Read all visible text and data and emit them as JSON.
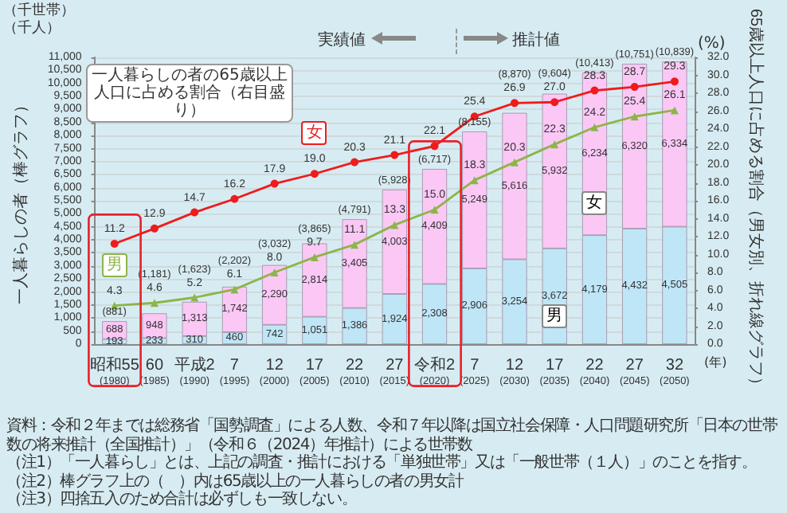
{
  "chart_data": {
    "type": "bar",
    "stacked": true,
    "ylabel": "一人暮らしの者（棒グラフ）",
    "y2label": "65歳以上人口に占める割合（男女別、折れ線グラフ）",
    "categories": [
      "昭和55\n(1980)",
      "60\n(1985)",
      "平成2\n(1990)",
      "7\n(1995)",
      "12\n(2000)",
      "17\n(2005)",
      "22\n(2010)",
      "27\n(2015)",
      "令和2\n(2020)",
      "7\n(2025)",
      "12\n(2030)",
      "17\n(2035)",
      "22\n(2040)",
      "27\n(2045)",
      "32\n(2050)"
    ],
    "series": [
      {
        "name": "男",
        "color": "#bfe6f7",
        "values": [
          193,
          233,
          310,
          460,
          742,
          1051,
          1386,
          1924,
          2308,
          2906,
          3254,
          3672,
          4179,
          4432,
          4505
        ],
        "value_labels": [
          "193",
          "233",
          "310",
          "460",
          "742",
          "1,051",
          "1,386",
          "1,924",
          "2,308",
          "2,906",
          "3,254",
          "3,672",
          "4,179",
          "4,432",
          "4,505"
        ]
      },
      {
        "name": "女",
        "color": "#fbc8f6",
        "values": [
          688,
          948,
          1313,
          1742,
          2290,
          2814,
          3405,
          4003,
          4409,
          5249,
          5616,
          5932,
          6234,
          6320,
          6334
        ],
        "value_labels": [
          "688",
          "948",
          "1,313",
          "1,742",
          "2,290",
          "2,814",
          "3,405",
          "4,003",
          "4,409",
          "5,249",
          "5,616",
          "5,932",
          "6,234",
          "6,320",
          "6,334"
        ]
      },
      {
        "name": "女",
        "type": "line",
        "axis": "y2",
        "marker": "circle",
        "color": "#ee1c1c",
        "values": [
          11.2,
          12.9,
          14.7,
          16.2,
          17.9,
          19.0,
          20.3,
          21.1,
          22.1,
          25.4,
          26.9,
          27.0,
          28.3,
          28.7,
          29.3
        ],
        "value_labels": [
          "11.2",
          "12.9",
          "14.7",
          "16.2",
          "17.9",
          "19.0",
          "20.3",
          "21.1",
          "22.1",
          "25.4",
          "26.9",
          "27.0",
          "28.3",
          "28.7",
          "29.3"
        ]
      },
      {
        "name": "男",
        "type": "line",
        "axis": "y2",
        "marker": "triangle",
        "color": "#8db54a",
        "values": [
          4.3,
          4.6,
          5.2,
          6.1,
          8.0,
          9.7,
          11.1,
          13.3,
          15.0,
          18.3,
          20.3,
          22.3,
          24.2,
          25.4,
          26.1
        ],
        "value_labels": [
          "4.3",
          "4.6",
          "5.2",
          "6.1",
          "8.0",
          "9.7",
          "11.1",
          "13.3",
          "15.0",
          "18.3",
          "20.3",
          "22.3",
          "24.2",
          "25.4",
          "26.1"
        ]
      }
    ],
    "totals": [
      "(881)",
      "(1,181)",
      "(1,623)",
      "(2,202)",
      "(3,032)",
      "(3,865)",
      "(4,791)",
      "(5,928)",
      "(6,717)",
      "(8,155)",
      "(8,870)",
      "(9,604)",
      "(10,413)",
      "(10,751)",
      "(10,839)"
    ],
    "ylim": [
      0,
      11000
    ],
    "yticks": [
      {
        "value": 0,
        "label": "0"
      },
      {
        "value": 500,
        "label": "500"
      },
      {
        "value": 1000,
        "label": "1,000"
      },
      {
        "value": 1500,
        "label": "1,500"
      },
      {
        "value": 2000,
        "label": "2,000"
      },
      {
        "value": 2500,
        "label": "2,500"
      },
      {
        "value": 3000,
        "label": "3,000"
      },
      {
        "value": 3500,
        "label": "3,500"
      },
      {
        "value": 4000,
        "label": "4,000"
      },
      {
        "value": 4500,
        "label": "4,500"
      },
      {
        "value": 5000,
        "label": "5,000"
      },
      {
        "value": 5500,
        "label": "5,500"
      },
      {
        "value": 6000,
        "label": "6,000"
      },
      {
        "value": 6500,
        "label": "6,500"
      },
      {
        "value": 7000,
        "label": "7,000"
      },
      {
        "value": 7500,
        "label": "7,500"
      },
      {
        "value": 8000,
        "label": "8,000"
      },
      {
        "value": 8500,
        "label": "8,500"
      },
      {
        "value": 9000,
        "label": "9,000"
      },
      {
        "value": 9500,
        "label": "9,500"
      },
      {
        "value": 10000,
        "label": "10,000"
      },
      {
        "value": 10500,
        "label": "10,500"
      },
      {
        "value": 11000,
        "label": "11,000"
      }
    ],
    "y2lim": [
      0,
      32
    ],
    "y2ticks": [
      {
        "value": 0,
        "label": "0.0"
      },
      {
        "value": 2,
        "label": "2.0"
      },
      {
        "value": 4,
        "label": "4.0"
      },
      {
        "value": 6,
        "label": "6.0"
      },
      {
        "value": 8,
        "label": "8.0"
      },
      {
        "value": 10,
        "label": "10.0"
      },
      {
        "value": 12,
        "label": "12.0"
      },
      {
        "value": 14,
        "label": "14.0"
      },
      {
        "value": 16,
        "label": "16.0"
      },
      {
        "value": 18,
        "label": "18.0"
      },
      {
        "value": 20,
        "label": "20.0"
      },
      {
        "value": 22,
        "label": "22.0"
      },
      {
        "value": 24,
        "label": "24.0"
      },
      {
        "value": 26,
        "label": "26.0"
      },
      {
        "value": 28,
        "label": "28.0"
      },
      {
        "value": 30,
        "label": "30.0"
      },
      {
        "value": 32,
        "label": "32.0"
      }
    ],
    "grid": "y",
    "legend": false,
    "annotations": [
      "（千世帯）（千人）",
      "(%)",
      "実績値",
      "推計値",
      "(年)",
      "一人暮らしの者の65歳以上人口に占める割合（右目盛り）",
      "資料：令和２年までは総務省「国勢調査」による人数、令和７年以降は国立社会保障・人口問題研究所「日本の世帯数の将来推計（全国推計）」（令和６（2024）年推計）による世帯数",
      "（注1）「一人暮らし」とは、上記の調査・推計における「単独世帯」又は「一般世帯（１人）」のことを指す。",
      "（注2）棒グラフ上の（　）内は65歳以上の一人暮らしの者の男女計",
      "（注3）四捨五入のため合計は必ずしも一致しない。"
    ]
  }
}
